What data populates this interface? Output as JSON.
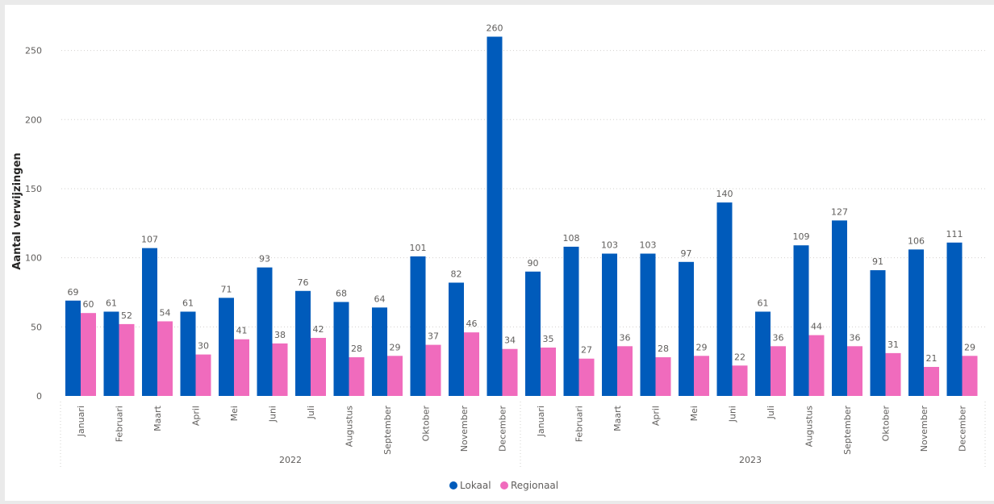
{
  "chart_data": {
    "type": "bar",
    "title": "",
    "xlabel": "",
    "ylabel": "Aantal verwijzingen",
    "ylim": [
      0,
      270
    ],
    "yticks": [
      0,
      50,
      100,
      150,
      200,
      250
    ],
    "grid": true,
    "legend_position": "bottom-center",
    "groups": [
      {
        "label": "2022",
        "categories": [
          "Januari",
          "Februari",
          "Maart",
          "April",
          "Mei",
          "Juni",
          "Juli",
          "Augustus",
          "September",
          "Oktober",
          "November",
          "December"
        ]
      },
      {
        "label": "2023",
        "categories": [
          "Januari",
          "Februari",
          "Maart",
          "April",
          "Mei",
          "Juni",
          "Juli",
          "Augustus",
          "September",
          "Oktober",
          "November",
          "December"
        ]
      }
    ],
    "series": [
      {
        "name": "Lokaal",
        "color": "#005bbb",
        "values": [
          69,
          61,
          107,
          61,
          71,
          93,
          76,
          68,
          64,
          101,
          82,
          260,
          90,
          108,
          103,
          103,
          97,
          140,
          61,
          109,
          127,
          91,
          106,
          111
        ]
      },
      {
        "name": "Regionaal",
        "color": "#f06bbd",
        "values": [
          60,
          52,
          54,
          30,
          41,
          38,
          42,
          28,
          29,
          37,
          46,
          34,
          35,
          27,
          36,
          28,
          29,
          22,
          36,
          44,
          36,
          31,
          21,
          29
        ]
      }
    ]
  }
}
